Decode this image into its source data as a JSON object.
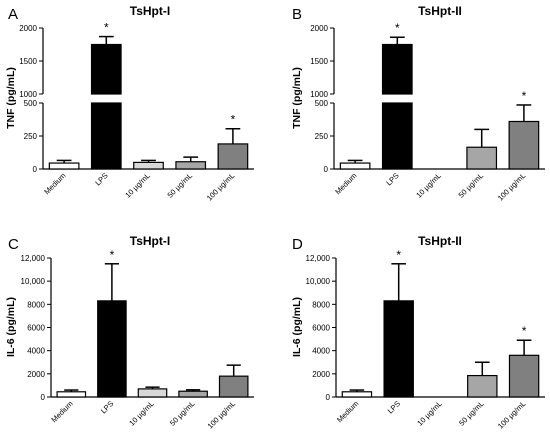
{
  "chart_data": [
    {
      "panel": "A",
      "type": "bar",
      "title": "TsHpt-I",
      "ylabel": "TNF (pg/mL)",
      "categories": [
        "Medium",
        "LPS",
        "10 µg/mL",
        "50 µg/mL",
        "100 µg/mL"
      ],
      "values": [
        45,
        1750,
        50,
        55,
        190
      ],
      "errors": [
        20,
        120,
        15,
        35,
        115
      ],
      "significant": [
        false,
        true,
        false,
        false,
        true
      ],
      "bar_colors": [
        "#ffffff",
        "#000000",
        "#d9d9d9",
        "#a6a6a6",
        "#808080"
      ],
      "axis_break": true,
      "segments": [
        {
          "ylim": [
            0,
            500
          ],
          "ticks": [
            0,
            250,
            500
          ],
          "tick_labels": [
            "0",
            "250",
            "500"
          ]
        },
        {
          "ylim": [
            1000,
            2000
          ],
          "ticks": [
            1000,
            1500,
            2000
          ],
          "tick_labels": [
            "1000",
            "1500",
            "2000"
          ]
        }
      ]
    },
    {
      "panel": "B",
      "type": "bar",
      "title": "TsHpt-II",
      "ylabel": "TNF (pg/mL)",
      "categories": [
        "Medium",
        "LPS",
        "10 µg/mL",
        "50 µg/mL",
        "100 µg/mL"
      ],
      "values": [
        45,
        1750,
        0,
        165,
        360
      ],
      "errors": [
        20,
        110,
        0,
        135,
        125
      ],
      "significant": [
        false,
        true,
        false,
        false,
        true
      ],
      "bar_colors": [
        "#ffffff",
        "#000000",
        "#d9d9d9",
        "#a6a6a6",
        "#808080"
      ],
      "axis_break": true,
      "segments": [
        {
          "ylim": [
            0,
            500
          ],
          "ticks": [
            0,
            250,
            500
          ],
          "tick_labels": [
            "0",
            "250",
            "500"
          ]
        },
        {
          "ylim": [
            1000,
            2000
          ],
          "ticks": [
            1000,
            1500,
            2000
          ],
          "tick_labels": [
            "1000",
            "1500",
            "2000"
          ]
        }
      ]
    },
    {
      "panel": "C",
      "type": "bar",
      "title": "TsHpt-I",
      "ylabel": "IL-6 (pg/mL)",
      "categories": [
        "Medium",
        "LPS",
        "10 µg/mL",
        "50 µg/mL",
        "100 µg/mL"
      ],
      "values": [
        450,
        8300,
        700,
        500,
        1800
      ],
      "errors": [
        150,
        3200,
        150,
        120,
        950
      ],
      "significant": [
        false,
        true,
        false,
        false,
        false
      ],
      "bar_colors": [
        "#ffffff",
        "#000000",
        "#d9d9d9",
        "#a6a6a6",
        "#808080"
      ],
      "axis_break": false,
      "ylim": [
        0,
        12000
      ],
      "ticks": [
        0,
        2000,
        4000,
        6000,
        8000,
        10000,
        12000
      ],
      "tick_labels": [
        "0",
        "2000",
        "4000",
        "6000",
        "8000",
        "10,000",
        "12,000"
      ]
    },
    {
      "panel": "D",
      "type": "bar",
      "title": "TsHpt-II",
      "ylabel": "IL-6 (pg/mL)",
      "categories": [
        "Medium",
        "LPS",
        "10 µg/mL",
        "50 µg/mL",
        "100 µg/mL"
      ],
      "values": [
        450,
        8300,
        0,
        1850,
        3600
      ],
      "errors": [
        150,
        3200,
        0,
        1150,
        1300
      ],
      "significant": [
        false,
        true,
        false,
        false,
        true
      ],
      "bar_colors": [
        "#ffffff",
        "#000000",
        "#d9d9d9",
        "#a6a6a6",
        "#808080"
      ],
      "axis_break": false,
      "ylim": [
        0,
        12000
      ],
      "ticks": [
        0,
        2000,
        4000,
        6000,
        8000,
        10000,
        12000
      ],
      "tick_labels": [
        "0",
        "2000",
        "4000",
        "6000",
        "8000",
        "10,000",
        "12,000"
      ]
    }
  ]
}
